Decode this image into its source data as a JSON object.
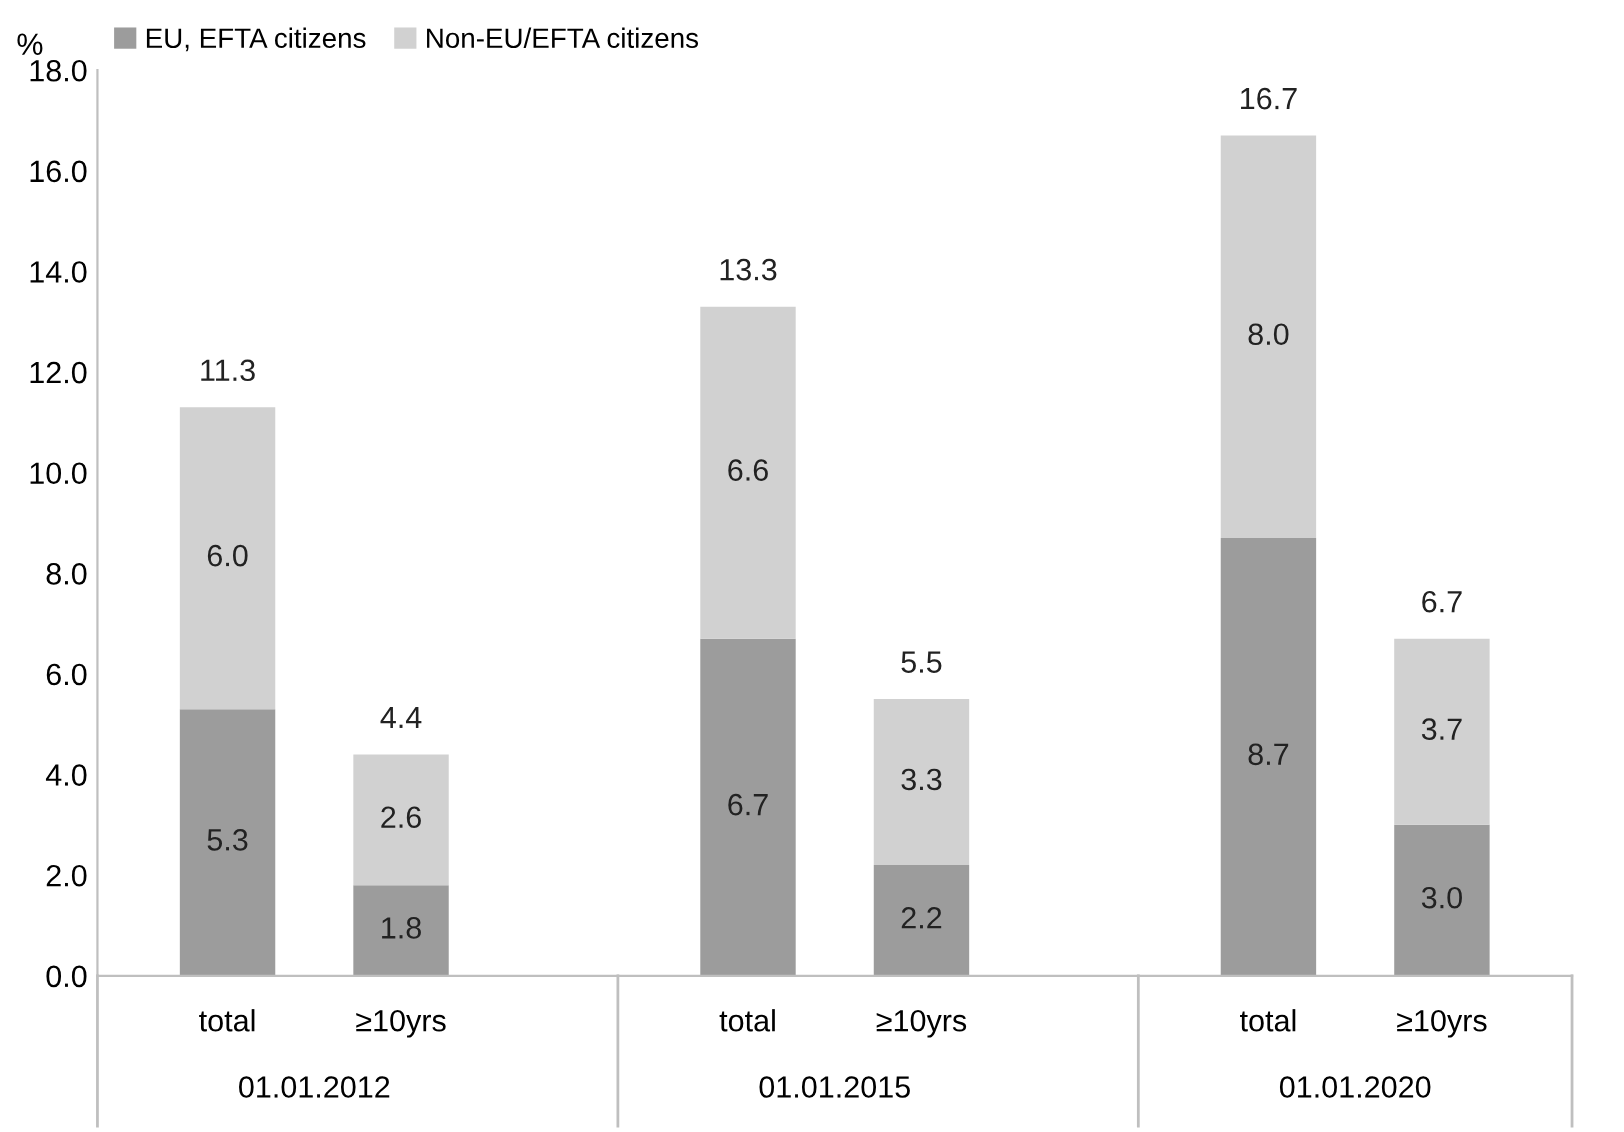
{
  "chart_data": {
    "type": "bar",
    "stacked": true,
    "ylabel": "%",
    "categories": [
      "total",
      "≥10yrs",
      "total",
      "≥10yrs",
      "total",
      "≥10yrs"
    ],
    "annotations": [
      "01.01.2012",
      "01.01.2015",
      "01.01.2020"
    ],
    "series": [
      {
        "name": "EU, EFTA citizens",
        "color": "#9c9c9c",
        "values": [
          5.3,
          1.8,
          6.7,
          2.2,
          8.7,
          3.0
        ],
        "value_labels": [
          "5.3",
          "1.8",
          "6.7",
          "2.2",
          "8.7",
          "3.0"
        ]
      },
      {
        "name": "Non-EU/EFTA citizens",
        "color": "#d1d1d1",
        "values": [
          6.0,
          2.6,
          6.6,
          3.3,
          8.0,
          3.7
        ],
        "value_labels": [
          "6.0",
          "2.6",
          "6.6",
          "3.3",
          "8.0",
          "3.7"
        ]
      }
    ],
    "totals": [
      "11.3",
      "4.4",
      "13.3",
      "5.5",
      "16.7",
      "6.7"
    ],
    "ylim": [
      0,
      18
    ],
    "yticks": [
      {
        "value": 0,
        "label": "0.0"
      },
      {
        "value": 2,
        "label": "2.0"
      },
      {
        "value": 4,
        "label": "4.0"
      },
      {
        "value": 6,
        "label": "6.0"
      },
      {
        "value": 8,
        "label": "8.0"
      },
      {
        "value": 10,
        "label": "10.0"
      },
      {
        "value": 12,
        "label": "12.0"
      },
      {
        "value": 14,
        "label": "14.0"
      },
      {
        "value": 16,
        "label": "16.0"
      },
      {
        "value": 18,
        "label": "18.0"
      }
    ],
    "grid": false,
    "legend": "top left"
  }
}
